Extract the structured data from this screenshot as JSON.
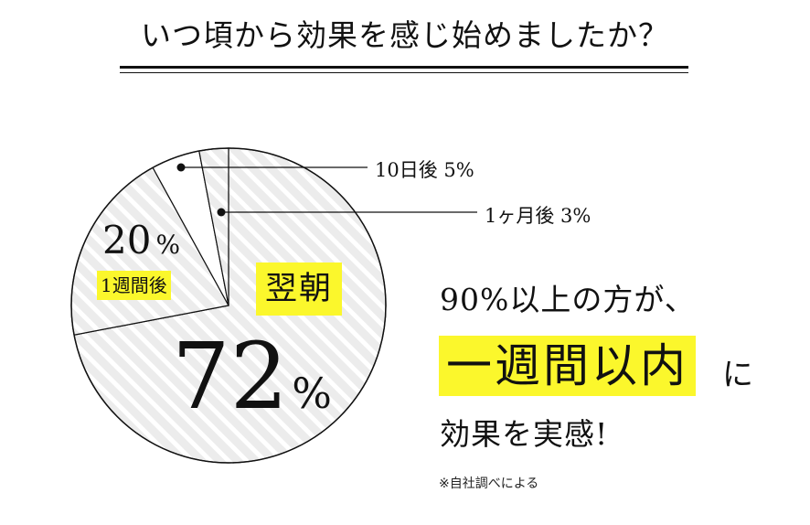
{
  "title": "いつ頃から効果を感じ始めましたか？",
  "chart_data": {
    "type": "pie",
    "slices": [
      {
        "label": "翌朝",
        "value": 72,
        "color": "#ececec",
        "pattern": "diagonal-stripes"
      },
      {
        "label": "1週間後",
        "value": 20,
        "color": "#ececec",
        "pattern": "diagonal-stripes"
      },
      {
        "label": "10日後",
        "value": 5,
        "color": "#ffffff"
      },
      {
        "label": "1ヶ月後",
        "value": 3,
        "color": "#ececec",
        "pattern": "diagonal-stripes"
      }
    ],
    "labels": {
      "morning": "翌朝",
      "one_week": "1週間後",
      "ten_days_callout": "10日後 5%",
      "one_month_callout": "1ヶ月後 3%",
      "pct_72": "72",
      "pct_20": "20",
      "pct_unit": "%"
    }
  },
  "message": {
    "line1": "90%以上の方が、",
    "highlight": "一週間以内",
    "suffix": "に",
    "line3": "効果を実感!"
  },
  "note": "※自社調べによる",
  "colors": {
    "highlight": "#fbf72c",
    "stripe": "#d9d9d9",
    "pie_fill": "#ececec",
    "ink": "#111111"
  }
}
